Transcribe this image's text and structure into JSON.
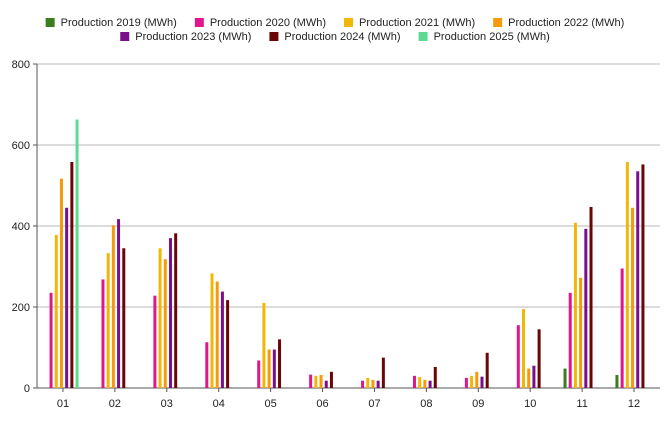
{
  "chart_data": {
    "type": "bar",
    "categories": [
      "01",
      "02",
      "03",
      "04",
      "05",
      "06",
      "07",
      "08",
      "09",
      "10",
      "11",
      "12"
    ],
    "series": [
      {
        "name": "Production 2019 (MWh)",
        "color": "#3a7d1e",
        "values": [
          null,
          null,
          null,
          null,
          null,
          null,
          null,
          null,
          null,
          null,
          48,
          32
        ]
      },
      {
        "name": "Production 2020 (MWh)",
        "color": "#e0168c",
        "values": [
          235,
          268,
          228,
          113,
          68,
          33,
          18,
          30,
          25,
          155,
          235,
          295
        ]
      },
      {
        "name": "Production 2021 (MWh)",
        "color": "#f2b705",
        "values": [
          378,
          333,
          345,
          283,
          210,
          30,
          25,
          27,
          30,
          195,
          408,
          558
        ]
      },
      {
        "name": "Production 2022 (MWh)",
        "color": "#f59a0b",
        "values": [
          517,
          402,
          318,
          263,
          95,
          32,
          20,
          20,
          40,
          48,
          272,
          445
        ]
      },
      {
        "name": "Production 2023 (MWh)",
        "color": "#7a0f8c",
        "values": [
          445,
          417,
          370,
          238,
          95,
          18,
          18,
          18,
          28,
          55,
          393,
          535
        ]
      },
      {
        "name": "Production 2024 (MWh)",
        "color": "#6b0606",
        "values": [
          558,
          345,
          382,
          217,
          120,
          40,
          75,
          52,
          87,
          145,
          447,
          552
        ]
      },
      {
        "name": "Production 2025 (MWh)",
        "color": "#5fd98f",
        "values": [
          663,
          null,
          null,
          null,
          null,
          null,
          null,
          null,
          null,
          null,
          null,
          null
        ]
      }
    ],
    "ylim": [
      0,
      800
    ],
    "yticks": [
      0,
      200,
      400,
      600,
      800
    ],
    "grid": true,
    "legend": "top-center"
  }
}
